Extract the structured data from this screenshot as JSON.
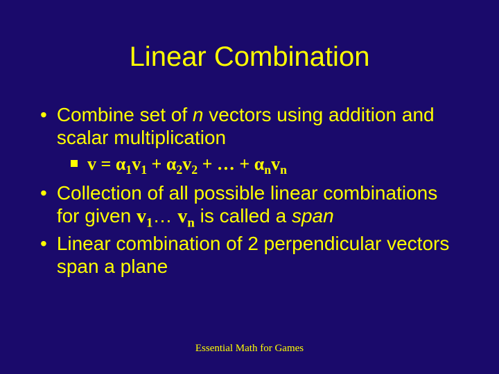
{
  "colors": {
    "background": "#1a0a6b",
    "text": "#ffff00"
  },
  "typography": {
    "title_fontsize": 40,
    "bullet1_fontsize": 28,
    "bullet2_fontsize": 26,
    "footer_fontsize": 15,
    "body_family": "Arial",
    "serif_family": "Times New Roman"
  },
  "title": "Linear Combination",
  "bullets": {
    "b1_pre": "Combine set of ",
    "b1_n": "n",
    "b1_post": " vectors using addition and scalar multiplication",
    "formula": {
      "v": "v",
      "eq": " = ",
      "a": "α",
      "s1": "1",
      "s2": "2",
      "sn": "n",
      "plus": " + ",
      "dots": " + … + "
    },
    "b3_pre": "Collection of all possible linear combinations for given ",
    "b3_v1": "v",
    "b3_s1": "1",
    "b3_mid": "… ",
    "b3_vn": "v",
    "b3_sn": "n",
    "b3_post": " is called a ",
    "b3_span": "span",
    "b4": "Linear combination of 2 perpendicular vectors span a plane"
  },
  "footer": "Essential Math for Games"
}
